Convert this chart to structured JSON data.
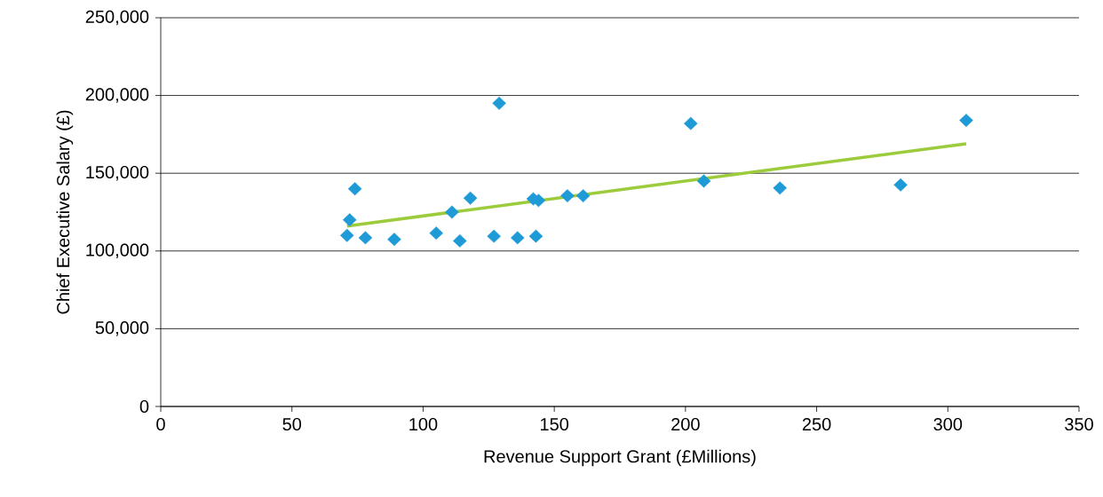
{
  "chart_data": {
    "type": "scatter",
    "xlabel": "Revenue Support Grant (£Millions)",
    "ylabel": "Chief Executive Salary (£)",
    "xlim": [
      0,
      350
    ],
    "ylim": [
      0,
      250000
    ],
    "xticks": [
      0,
      50,
      100,
      150,
      200,
      250,
      300,
      350
    ],
    "yticks": [
      {
        "value": 0,
        "label": "0"
      },
      {
        "value": 50000,
        "label": "50,000"
      },
      {
        "value": 100000,
        "label": "100,000"
      },
      {
        "value": 150000,
        "label": "150,000"
      },
      {
        "value": 200000,
        "label": "200,000"
      },
      {
        "value": 250000,
        "label": "250,000"
      }
    ],
    "grid": "y",
    "marker": "diamond",
    "series": [
      {
        "color": "#1e9bd7",
        "x": [
          72,
          71,
          74,
          78,
          89,
          105,
          111,
          114,
          118,
          127,
          129,
          136,
          142,
          143,
          144,
          155,
          161,
          202,
          207,
          236,
          282,
          307
        ],
        "values": [
          120000,
          110000,
          140000,
          108500,
          107500,
          111500,
          125000,
          106500,
          134000,
          109500,
          195000,
          108500,
          133500,
          109500,
          132500,
          135500,
          135500,
          182000,
          145000,
          140500,
          142500,
          184000
        ]
      },
      {
        "type": "line",
        "color": "#9ccb3b",
        "marker": "none",
        "x": [
          71,
          307
        ],
        "values": [
          116000,
          169000
        ]
      }
    ]
  }
}
